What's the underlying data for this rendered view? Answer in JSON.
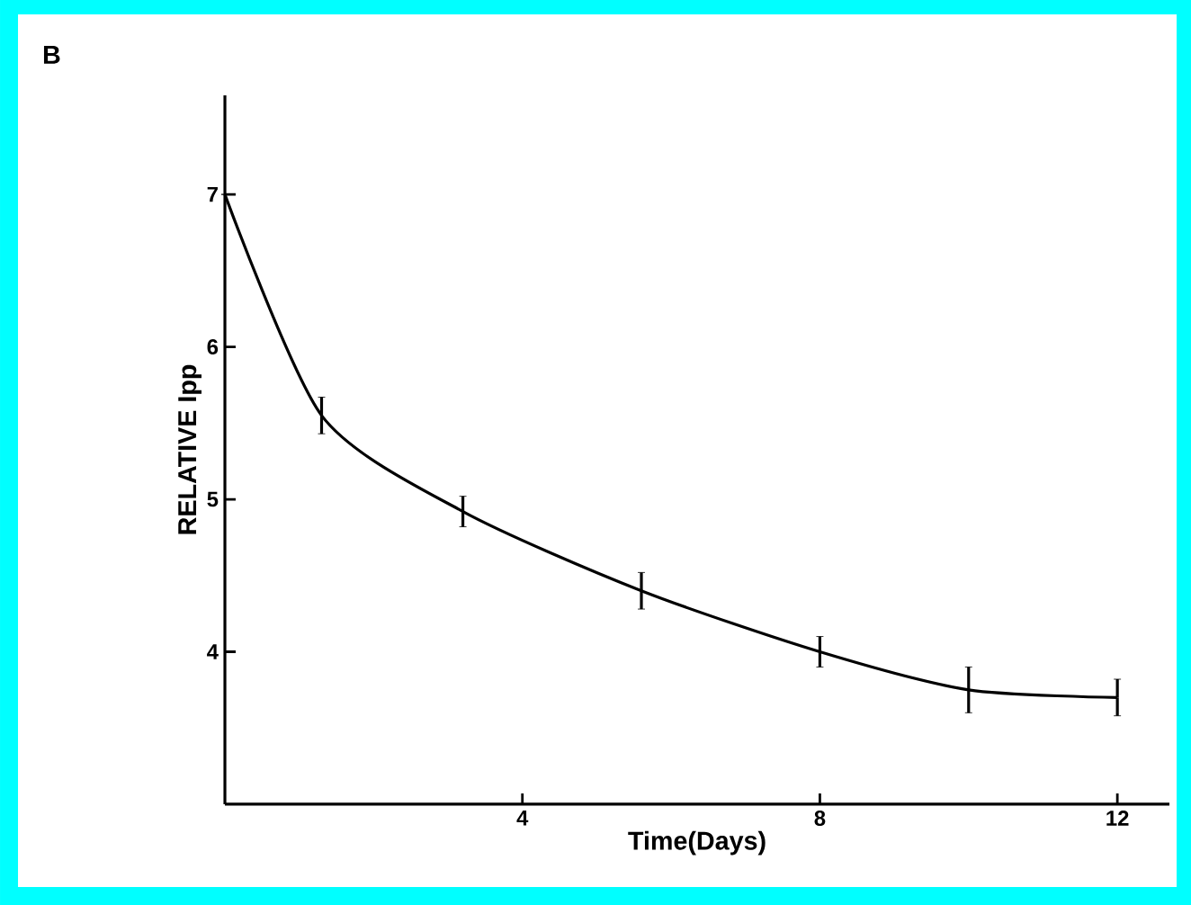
{
  "chart_data": {
    "type": "line",
    "title": "B",
    "xlabel": "Time(Days)",
    "ylabel": "RELATIVE Ipp",
    "x": [
      0,
      1.3,
      3.2,
      5.6,
      8,
      10,
      12
    ],
    "series": [
      {
        "color": "#000000",
        "values": [
          7.0,
          5.55,
          4.92,
          4.4,
          4.0,
          3.75,
          3.7
        ],
        "errors": [
          null,
          0.12,
          0.1,
          0.12,
          0.1,
          0.15,
          0.12
        ]
      }
    ],
    "xlim": [
      0,
      12.7
    ],
    "ylim": [
      3,
      7.65
    ],
    "xticks": [
      4,
      8,
      12
    ],
    "yticks": [
      4,
      5,
      6,
      7
    ],
    "marker": "none"
  }
}
